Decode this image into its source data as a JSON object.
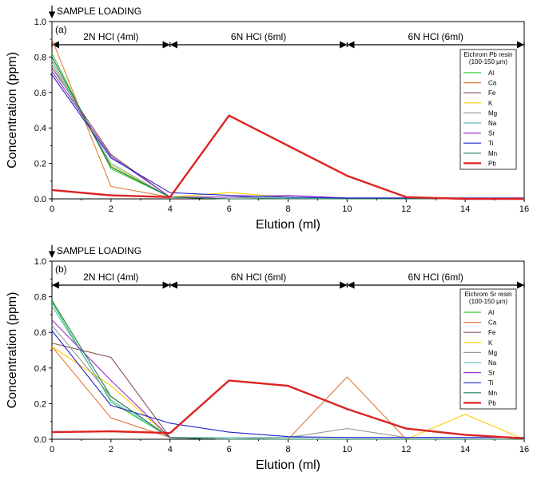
{
  "chart_data": [
    {
      "type": "line",
      "panel_label": "(a)",
      "xlabel": "Elution (ml)",
      "ylabel": "Concentration (ppm)",
      "xlim": [
        0,
        16
      ],
      "ylim": [
        0,
        1.0
      ],
      "xticks": [
        "0",
        "2",
        "4",
        "6",
        "8",
        "10",
        "12",
        "14",
        "16"
      ],
      "yticks": [
        "0.0",
        "0.2",
        "0.4",
        "0.6",
        "0.8",
        "1.0"
      ],
      "sample_loading": "SAMPLE LOADING",
      "phases": [
        {
          "label": "2N HCl (4ml)",
          "from": 0,
          "to": 4
        },
        {
          "label": "6N HCl (6ml)",
          "from": 4,
          "to": 10
        },
        {
          "label": "6N HCl (6ml)",
          "from": 10,
          "to": 16
        }
      ],
      "legend_title": [
        "Eichrom Pb resin",
        "(100-150 μm)"
      ],
      "series": [
        {
          "name": "Al",
          "color": "#33cc33",
          "x": [
            0,
            2,
            4,
            6,
            8,
            10,
            12,
            14,
            16
          ],
          "values": [
            0.82,
            0.17,
            0.01,
            0.0,
            0.0,
            0.0,
            0.0,
            0.0,
            0.0
          ]
        },
        {
          "name": "Ca",
          "color": "#e07b3c",
          "x": [
            0,
            2,
            4,
            6,
            8,
            10,
            12,
            14,
            16
          ],
          "values": [
            0.9,
            0.07,
            0.01,
            0.0,
            0.0,
            0.0,
            0.0,
            0.0,
            0.0
          ]
        },
        {
          "name": "Fe",
          "color": "#8b4f4f",
          "x": [
            0,
            2,
            4,
            6,
            8,
            10,
            12,
            14,
            16
          ],
          "values": [
            0.74,
            0.25,
            0.01,
            0.01,
            0.0,
            0.0,
            0.0,
            0.0,
            0.0
          ]
        },
        {
          "name": "K",
          "color": "#ffcc00",
          "x": [
            0,
            2,
            4,
            6,
            8,
            10,
            12,
            14,
            16
          ],
          "values": [
            0.76,
            0.19,
            0.01,
            0.035,
            0.01,
            0.0,
            0.0,
            0.0,
            0.0
          ]
        },
        {
          "name": "Mg",
          "color": "#999999",
          "x": [
            0,
            2,
            4,
            6,
            8,
            10,
            12,
            14,
            16
          ],
          "values": [
            0.78,
            0.18,
            0.01,
            0.0,
            0.0,
            0.0,
            0.0,
            0.0,
            0.0
          ]
        },
        {
          "name": "Na",
          "color": "#66bbbb",
          "x": [
            0,
            2,
            4,
            6,
            8,
            10,
            12,
            14,
            16
          ],
          "values": [
            0.76,
            0.2,
            0.01,
            0.01,
            0.005,
            0.005,
            0.005,
            0.005,
            0.005
          ]
        },
        {
          "name": "Sr",
          "color": "#9933cc",
          "x": [
            0,
            2,
            4,
            6,
            8,
            10,
            12,
            14,
            16
          ],
          "values": [
            0.72,
            0.24,
            0.01,
            0.01,
            0.02,
            0.005,
            0.005,
            0.005,
            0.005
          ]
        },
        {
          "name": "Ti",
          "color": "#2222cc",
          "x": [
            0,
            2,
            4,
            6,
            8,
            10,
            12,
            14,
            16
          ],
          "values": [
            0.7,
            0.23,
            0.035,
            0.02,
            0.01,
            0.005,
            0.005,
            0.005,
            0.005
          ]
        },
        {
          "name": "Mn",
          "color": "#1f7a4d",
          "x": [
            0,
            2,
            4,
            6,
            8,
            10,
            12,
            14,
            16
          ],
          "values": [
            0.8,
            0.18,
            0.01,
            0.0,
            0.0,
            0.0,
            0.0,
            0.0,
            0.0
          ]
        },
        {
          "name": "Pb",
          "color": "#dd2222",
          "x": [
            0,
            2,
            4,
            6,
            8,
            10,
            12,
            14,
            16
          ],
          "values": [
            0.05,
            0.02,
            0.01,
            0.47,
            0.3,
            0.13,
            0.01,
            0.0,
            0.0
          ]
        }
      ]
    },
    {
      "type": "line",
      "panel_label": "(b)",
      "xlabel": "Elution (ml)",
      "ylabel": "Concentration (ppm)",
      "xlim": [
        0,
        16
      ],
      "ylim": [
        0,
        1.0
      ],
      "xticks": [
        "0",
        "2",
        "4",
        "6",
        "8",
        "10",
        "12",
        "14",
        "16"
      ],
      "yticks": [
        "0.0",
        "0.2",
        "0.4",
        "0.6",
        "0.8",
        "1.0"
      ],
      "sample_loading": "SAMPLE LOADING",
      "phases": [
        {
          "label": "2N HCl (4ml)",
          "from": 0,
          "to": 4
        },
        {
          "label": "6N HCl (6ml)",
          "from": 4,
          "to": 10
        },
        {
          "label": "6N HCl (6ml)",
          "from": 10,
          "to": 16
        }
      ],
      "legend_title": [
        "Eichrom Sr resin",
        "(100-150 μm)"
      ],
      "series": [
        {
          "name": "Al",
          "color": "#33cc33",
          "x": [
            0,
            2,
            4,
            6,
            8,
            10,
            12,
            14,
            16
          ],
          "values": [
            0.77,
            0.21,
            0.01,
            0.0,
            0.0,
            0.0,
            0.0,
            0.0,
            0.0
          ]
        },
        {
          "name": "Ca",
          "color": "#e07b3c",
          "x": [
            0,
            2,
            4,
            6,
            8,
            10,
            12,
            14,
            16
          ],
          "values": [
            0.52,
            0.12,
            0.01,
            0.0,
            0.0,
            0.35,
            0.0,
            0.0,
            0.0
          ]
        },
        {
          "name": "Fe",
          "color": "#8b4f4f",
          "x": [
            0,
            2,
            4,
            6,
            8,
            10,
            12,
            14,
            16
          ],
          "values": [
            0.54,
            0.46,
            0.01,
            0.0,
            0.0,
            0.0,
            0.0,
            0.0,
            0.0
          ]
        },
        {
          "name": "K",
          "color": "#ffcc00",
          "x": [
            0,
            2,
            4,
            6,
            8,
            10,
            12,
            14,
            16
          ],
          "values": [
            0.52,
            0.3,
            0.01,
            0.0,
            0.0,
            0.0,
            0.0,
            0.14,
            0.0
          ]
        },
        {
          "name": "Mg",
          "color": "#999999",
          "x": [
            0,
            2,
            4,
            6,
            8,
            10,
            12,
            14,
            16
          ],
          "values": [
            0.64,
            0.24,
            0.01,
            0.0,
            0.01,
            0.06,
            0.01,
            0.01,
            0.01
          ]
        },
        {
          "name": "Na",
          "color": "#66bbbb",
          "x": [
            0,
            2,
            4,
            6,
            8,
            10,
            12,
            14,
            16
          ],
          "values": [
            0.75,
            0.22,
            0.01,
            0.01,
            0.01,
            0.01,
            0.01,
            0.01,
            0.01
          ]
        },
        {
          "name": "Sr",
          "color": "#9933cc",
          "x": [
            0,
            2,
            4,
            6,
            8,
            10,
            12,
            14,
            16
          ],
          "values": [
            0.67,
            0.33,
            0.01,
            0.0,
            0.0,
            0.0,
            0.0,
            0.0,
            0.0
          ]
        },
        {
          "name": "Ti",
          "color": "#2222cc",
          "x": [
            0,
            2,
            4,
            6,
            8,
            10,
            12,
            14,
            16
          ],
          "values": [
            0.61,
            0.19,
            0.09,
            0.04,
            0.015,
            0.01,
            0.01,
            0.01,
            0.01
          ]
        },
        {
          "name": "Mn",
          "color": "#1f7a4d",
          "x": [
            0,
            2,
            4,
            6,
            8,
            10,
            12,
            14,
            16
          ],
          "values": [
            0.78,
            0.24,
            0.01,
            0.0,
            0.0,
            0.0,
            0.0,
            0.0,
            0.0
          ]
        },
        {
          "name": "Pb",
          "color": "#dd2222",
          "x": [
            0,
            2,
            4,
            6,
            8,
            10,
            12,
            14,
            16
          ],
          "values": [
            0.04,
            0.045,
            0.035,
            0.33,
            0.3,
            0.17,
            0.06,
            0.025,
            0.005
          ]
        }
      ]
    }
  ]
}
